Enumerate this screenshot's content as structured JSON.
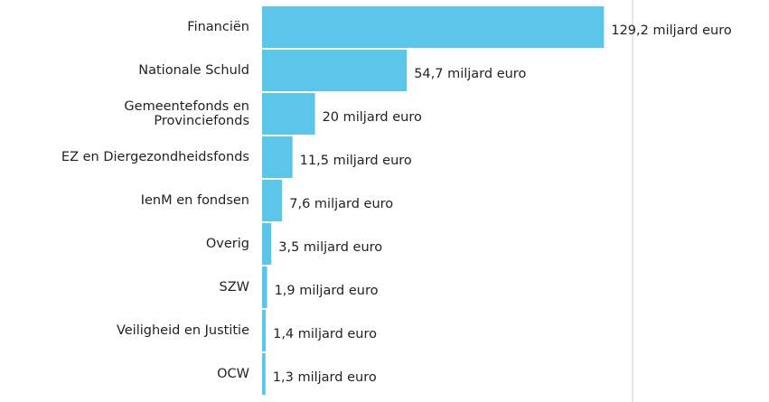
{
  "chart_data": {
    "type": "barh",
    "categories": [
      "Financiën",
      "Nationale Schuld",
      "Gemeentefonds en\nProvinciefonds",
      "EZ en Diergezondheidsfonds",
      "IenM en fondsen",
      "Overig",
      "SZW",
      "Veiligheid en Justitie",
      "OCW"
    ],
    "values": [
      129.2,
      54.7,
      20,
      11.5,
      7.6,
      3.5,
      1.9,
      1.4,
      1.3
    ],
    "value_labels": [
      "129,2 miljard euro",
      "54,7 miljard euro",
      "20 miljard euro",
      "11,5 miljard euro",
      "7,6 miljard euro",
      "3,5 miljard euro",
      "1,9 miljard euro",
      "1,4 miljard euro",
      "1,3 miljard euro"
    ],
    "color": "#5bc5ea",
    "xlim": [
      0,
      140
    ]
  }
}
